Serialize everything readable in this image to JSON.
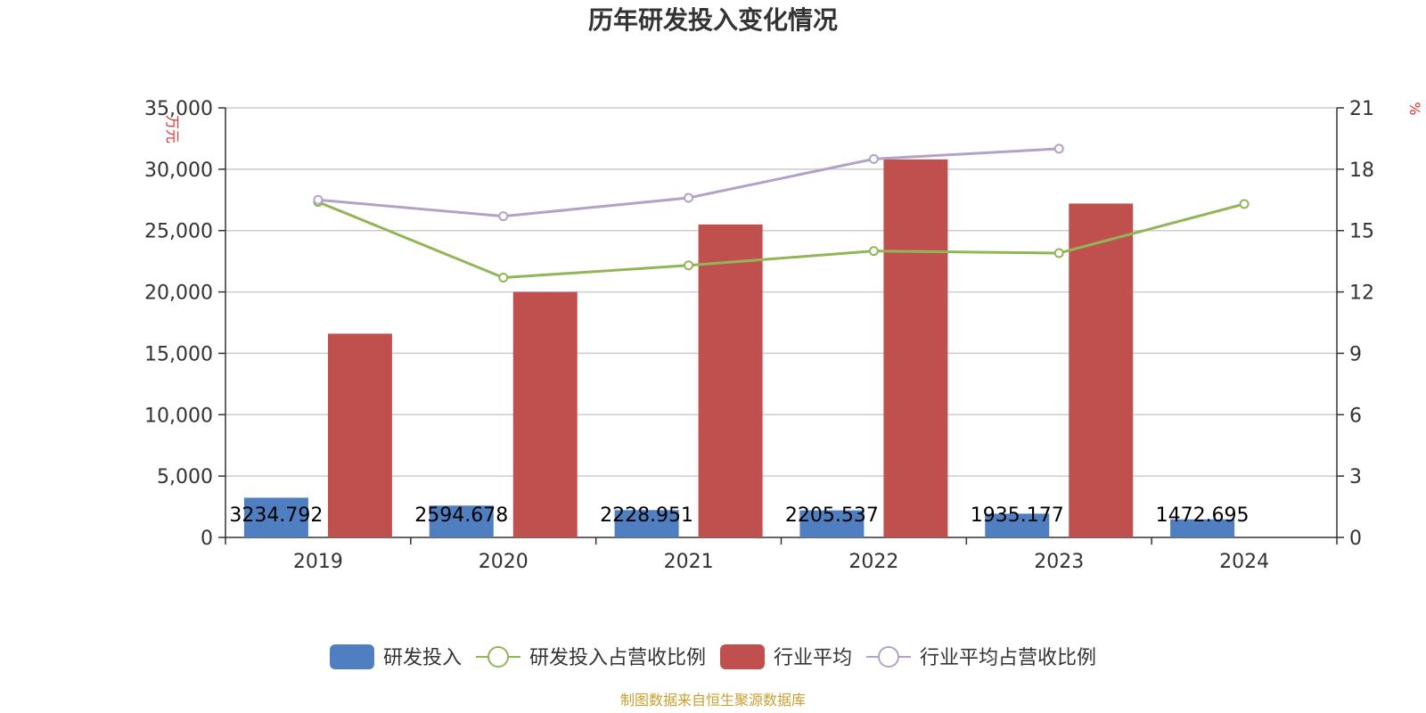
{
  "chart_data": {
    "type": "bar",
    "title": "历年研发投入变化情况",
    "categories": [
      "2019",
      "2020",
      "2021",
      "2022",
      "2023",
      "2024"
    ],
    "y_left": {
      "unit": "万元",
      "ylim": [
        0,
        35000
      ],
      "ticks": [
        0,
        5000,
        10000,
        15000,
        20000,
        25000,
        30000,
        35000
      ],
      "tick_labels": [
        "0",
        "5,000",
        "10,000",
        "15,000",
        "20,000",
        "25,000",
        "30,000",
        "35,000"
      ]
    },
    "y_right": {
      "unit": "%",
      "ylim": [
        0,
        21
      ],
      "ticks": [
        0,
        3,
        6,
        9,
        12,
        15,
        18,
        21
      ],
      "tick_labels": [
        "0",
        "3",
        "6",
        "9",
        "12",
        "15",
        "18",
        "21"
      ]
    },
    "grid": true,
    "legend_position": "bottom",
    "series": [
      {
        "name": "研发投入",
        "kind": "bar",
        "axis": "left",
        "color": "#4f7fc0",
        "values": [
          3234.792,
          2594.678,
          2228.951,
          2205.537,
          1935.177,
          1472.695
        ],
        "labels": [
          "3234.792",
          "2594.678",
          "2228.951",
          "2205.537",
          "1935.177",
          "1472.695"
        ]
      },
      {
        "name": "研发投入占营收比例",
        "kind": "line",
        "axis": "right",
        "color": "#92b558",
        "values": [
          16.4,
          12.7,
          13.3,
          14.0,
          13.9,
          16.3
        ]
      },
      {
        "name": "行业平均",
        "kind": "bar",
        "axis": "left",
        "color": "#c0504d",
        "values": [
          16600,
          20000,
          25500,
          30800,
          27200,
          null
        ]
      },
      {
        "name": "行业平均占营收比例",
        "kind": "line",
        "axis": "right",
        "color": "#b3a2c8",
        "values": [
          16.5,
          15.7,
          16.6,
          18.5,
          19.0,
          null
        ]
      }
    ]
  },
  "source_text": "制图数据来自恒生聚源数据库"
}
